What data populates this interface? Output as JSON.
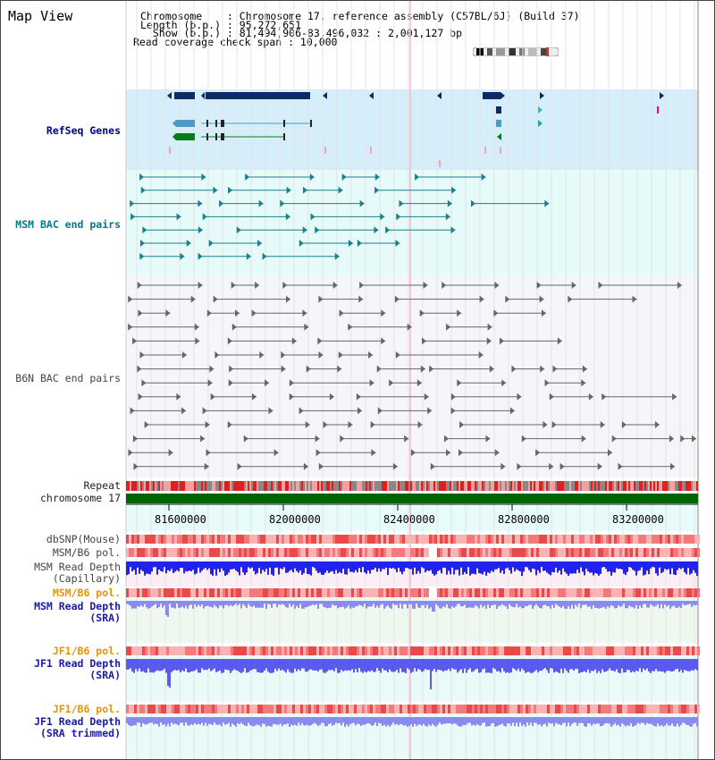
{
  "panel": {
    "title": "Map View"
  },
  "info": {
    "line1": "Chromosome    : Chromosome 17, reference assembly (C57BL/6J) (Build 37)",
    "line2": "Length (b.p.) : 95,272,651",
    "line3": "  Show (b.p.) : 81,494,906-83,496,032 : 2,001,127 bp",
    "line4": "Read coverage check span : 10,000"
  },
  "tracks": {
    "refseq": "RefSeq Genes",
    "msm_bac": "MSM BAC end pairs",
    "b6n_bac": "B6N BAC end pairs",
    "repeat": "Repeat",
    "chromosome": "chromosome 17",
    "dbsnp": "dbSNP(Mouse)",
    "msm_b6_pol": "MSM/B6 pol.",
    "msm_depth_cap_1": "MSM Read Depth",
    "msm_depth_cap_2": "(Capillary)",
    "msm_b6_pol2": "MSM/B6 pol.",
    "msm_depth_sra_1": "MSM Read Depth",
    "msm_depth_sra_2": "(SRA)",
    "jf1_b6_pol": "JF1/B6 pol.",
    "jf1_depth_sra_1": "JF1 Read Depth",
    "jf1_depth_sra_2": "(SRA)",
    "jf1_b6_pol2": "JF1/B6 pol.",
    "jf1_depth_trim_1": "JF1 Read Depth",
    "jf1_depth_trim_2": "(SRA trimmed)"
  },
  "axis": {
    "ticks": [
      "81600000",
      "82000000",
      "82400000",
      "82800000",
      "83200000"
    ]
  },
  "colors": {
    "navy": "#00008b",
    "teal": "#007b8b",
    "orange": "#e69500",
    "refseq_bg": "#d6eefa",
    "msm_bg": "#e6fafa",
    "b6n_bg": "#f4f6fa",
    "chrom_bar": "#006400",
    "depth_blue": "#2a2af0"
  }
}
